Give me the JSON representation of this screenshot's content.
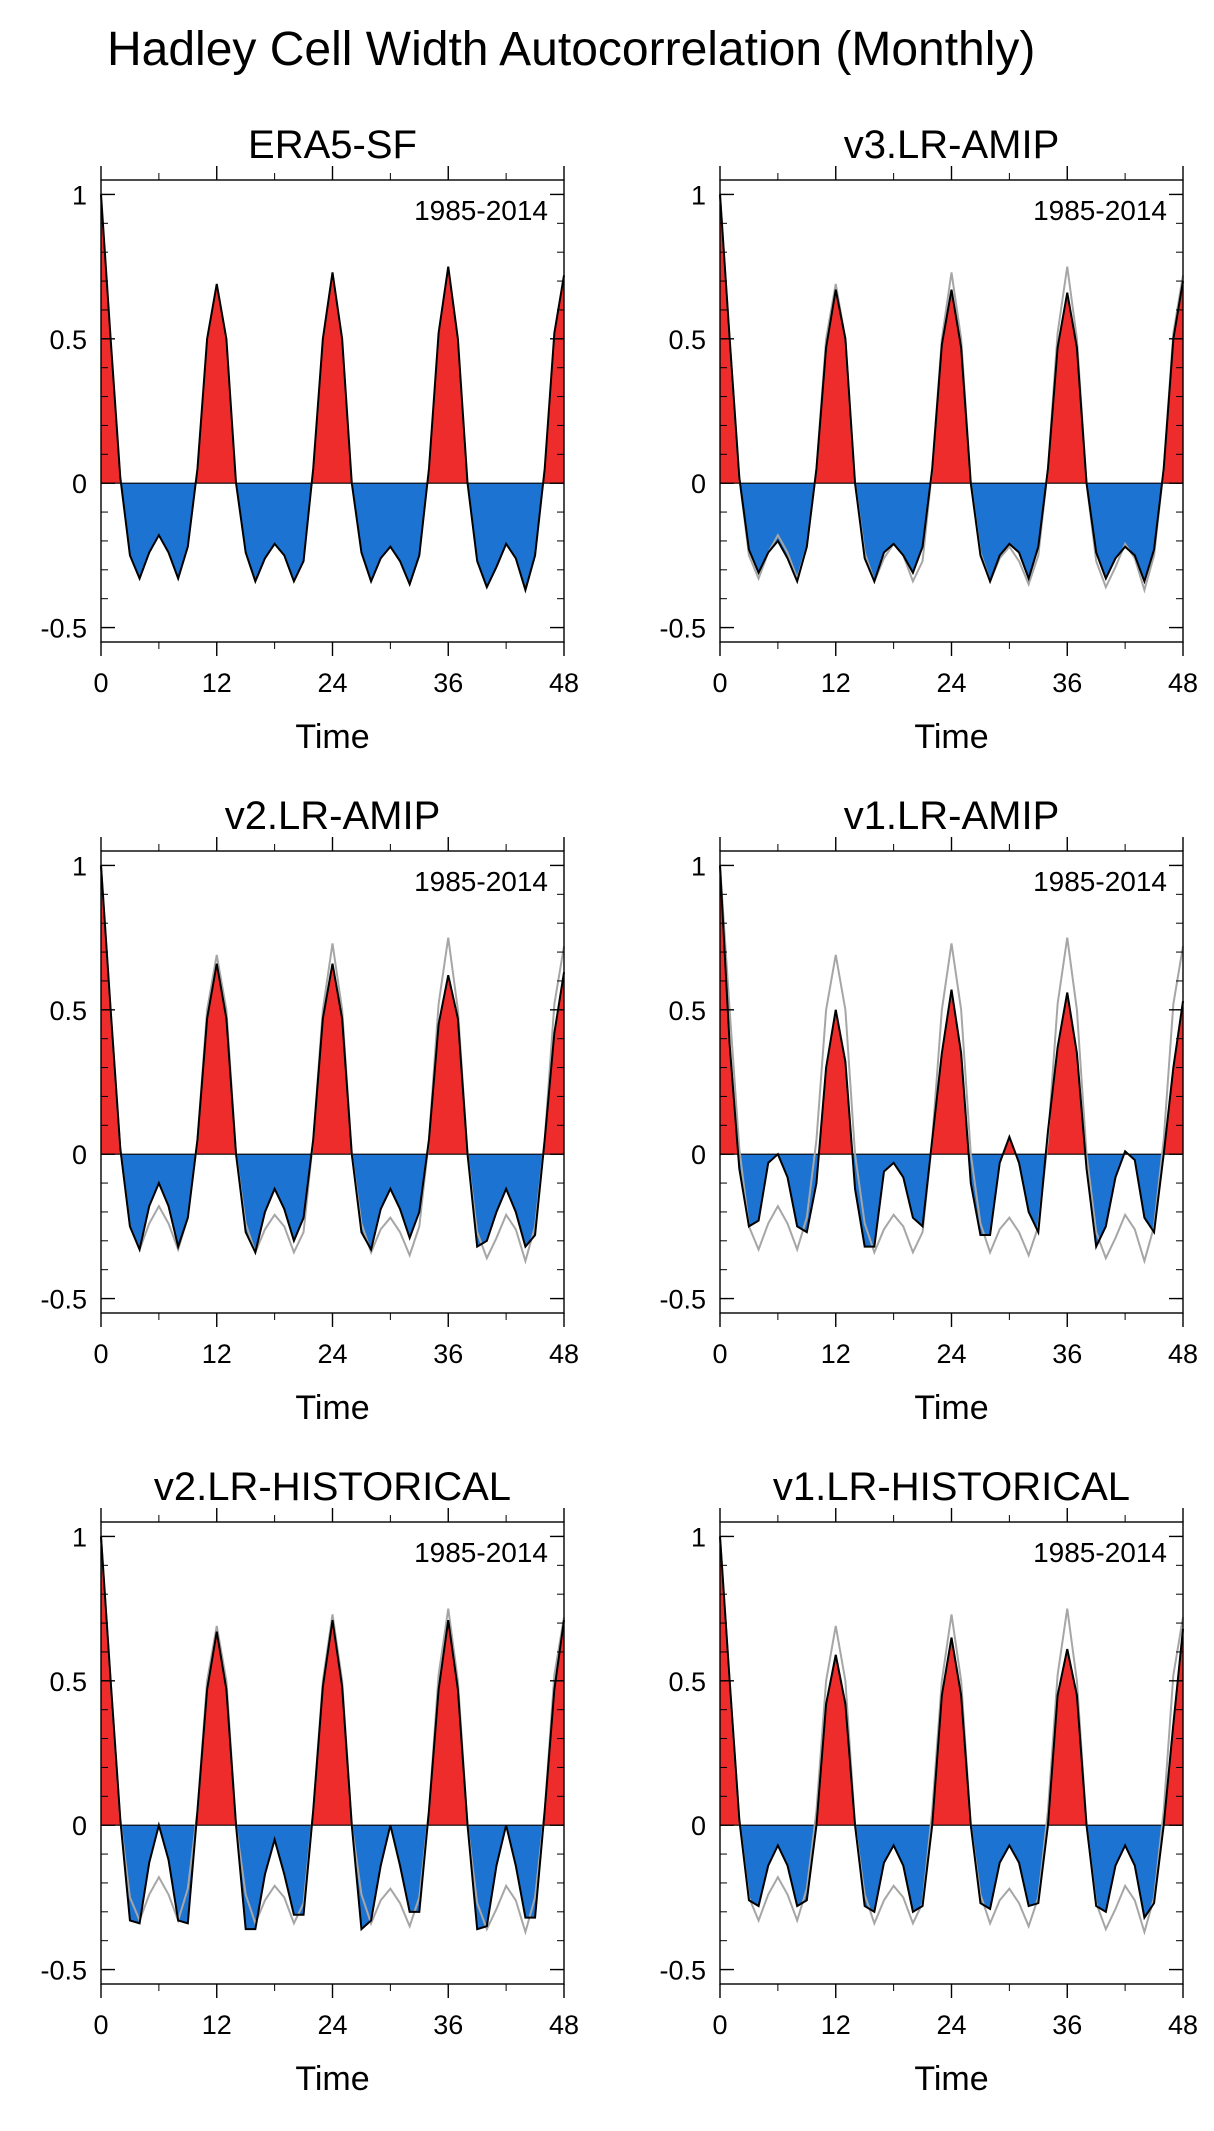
{
  "figure": {
    "title": "Hadley Cell Width Autocorrelation (Monthly)"
  },
  "shared": {
    "xlabel": "Time",
    "period": "1985-2014",
    "xticks": [
      0,
      12,
      24,
      36,
      48
    ],
    "yticks": [
      1,
      0.5,
      0,
      -0.5
    ],
    "ytick_labels": [
      "1",
      "0.5",
      "0",
      "-0.5"
    ],
    "xlim": [
      0,
      48
    ],
    "ylim": [
      -0.55,
      1.05
    ],
    "colors": {
      "positive": "#ee2c2c",
      "negative": "#1c73d2",
      "model_line": "#000000",
      "reference_line": "#a6a6a6"
    }
  },
  "chart_data": [
    {
      "type": "area",
      "title": "ERA5-SF",
      "xlabel": "Time",
      "ylabel": "",
      "annotation": "1985-2014",
      "x": [
        0,
        1,
        2,
        3,
        4,
        5,
        6,
        7,
        8,
        9,
        10,
        11,
        12,
        13,
        14,
        15,
        16,
        17,
        18,
        19,
        20,
        21,
        22,
        23,
        24,
        25,
        26,
        27,
        28,
        29,
        30,
        31,
        32,
        33,
        34,
        35,
        36,
        37,
        38,
        39,
        40,
        41,
        42,
        43,
        44,
        45,
        46,
        47,
        48
      ],
      "ylim": [
        -0.55,
        1.05
      ],
      "series": [
        {
          "name": "ERA5-SF",
          "values": [
            1.0,
            0.5,
            0.02,
            -0.25,
            -0.33,
            -0.24,
            -0.18,
            -0.24,
            -0.33,
            -0.22,
            0.05,
            0.5,
            0.69,
            0.5,
            0.0,
            -0.24,
            -0.34,
            -0.26,
            -0.21,
            -0.25,
            -0.34,
            -0.27,
            0.05,
            0.5,
            0.73,
            0.5,
            0.0,
            -0.24,
            -0.34,
            -0.26,
            -0.22,
            -0.27,
            -0.35,
            -0.25,
            0.05,
            0.52,
            0.75,
            0.5,
            0.0,
            -0.27,
            -0.36,
            -0.29,
            -0.21,
            -0.26,
            -0.37,
            -0.25,
            0.05,
            0.52,
            0.72
          ]
        }
      ]
    },
    {
      "type": "area",
      "title": "v3.LR-AMIP",
      "xlabel": "Time",
      "ylabel": "",
      "annotation": "1985-2014",
      "x": [
        0,
        1,
        2,
        3,
        4,
        5,
        6,
        7,
        8,
        9,
        10,
        11,
        12,
        13,
        14,
        15,
        16,
        17,
        18,
        19,
        20,
        21,
        22,
        23,
        24,
        25,
        26,
        27,
        28,
        29,
        30,
        31,
        32,
        33,
        34,
        35,
        36,
        37,
        38,
        39,
        40,
        41,
        42,
        43,
        44,
        45,
        46,
        47,
        48
      ],
      "ylim": [
        -0.55,
        1.05
      ],
      "series": [
        {
          "name": "v3.LR-AMIP",
          "values": [
            1.0,
            0.5,
            0.02,
            -0.23,
            -0.31,
            -0.24,
            -0.2,
            -0.26,
            -0.34,
            -0.22,
            0.05,
            0.47,
            0.67,
            0.5,
            0.0,
            -0.26,
            -0.34,
            -0.24,
            -0.21,
            -0.25,
            -0.31,
            -0.22,
            0.05,
            0.48,
            0.67,
            0.47,
            0.0,
            -0.25,
            -0.34,
            -0.25,
            -0.21,
            -0.24,
            -0.33,
            -0.22,
            0.05,
            0.47,
            0.66,
            0.47,
            0.0,
            -0.24,
            -0.33,
            -0.26,
            -0.22,
            -0.25,
            -0.34,
            -0.23,
            0.05,
            0.5,
            0.7
          ]
        },
        {
          "name": "ERA5-SF",
          "values": [
            1.0,
            0.5,
            0.02,
            -0.25,
            -0.33,
            -0.24,
            -0.18,
            -0.24,
            -0.33,
            -0.22,
            0.05,
            0.5,
            0.69,
            0.5,
            0.0,
            -0.24,
            -0.34,
            -0.26,
            -0.21,
            -0.25,
            -0.34,
            -0.27,
            0.05,
            0.5,
            0.73,
            0.5,
            0.0,
            -0.24,
            -0.34,
            -0.26,
            -0.22,
            -0.27,
            -0.35,
            -0.25,
            0.05,
            0.52,
            0.75,
            0.5,
            0.0,
            -0.27,
            -0.36,
            -0.29,
            -0.21,
            -0.26,
            -0.37,
            -0.25,
            0.05,
            0.52,
            0.72
          ]
        }
      ]
    },
    {
      "type": "area",
      "title": "v2.LR-AMIP",
      "xlabel": "Time",
      "ylabel": "",
      "annotation": "1985-2014",
      "x": [
        0,
        1,
        2,
        3,
        4,
        5,
        6,
        7,
        8,
        9,
        10,
        11,
        12,
        13,
        14,
        15,
        16,
        17,
        18,
        19,
        20,
        21,
        22,
        23,
        24,
        25,
        26,
        27,
        28,
        29,
        30,
        31,
        32,
        33,
        34,
        35,
        36,
        37,
        38,
        39,
        40,
        41,
        42,
        43,
        44,
        45,
        46,
        47,
        48
      ],
      "ylim": [
        -0.55,
        1.05
      ],
      "series": [
        {
          "name": "v2.LR-AMIP",
          "values": [
            1.0,
            0.5,
            0.02,
            -0.25,
            -0.33,
            -0.18,
            -0.1,
            -0.18,
            -0.32,
            -0.22,
            0.05,
            0.47,
            0.66,
            0.47,
            0.0,
            -0.27,
            -0.34,
            -0.2,
            -0.12,
            -0.19,
            -0.3,
            -0.22,
            0.05,
            0.47,
            0.66,
            0.47,
            0.0,
            -0.27,
            -0.33,
            -0.19,
            -0.12,
            -0.19,
            -0.29,
            -0.2,
            0.05,
            0.45,
            0.62,
            0.47,
            0.0,
            -0.32,
            -0.3,
            -0.2,
            -0.12,
            -0.2,
            -0.32,
            -0.28,
            0.05,
            0.42,
            0.63
          ]
        },
        {
          "name": "ERA5-SF",
          "values": [
            1.0,
            0.5,
            0.02,
            -0.25,
            -0.33,
            -0.24,
            -0.18,
            -0.24,
            -0.33,
            -0.22,
            0.05,
            0.5,
            0.69,
            0.5,
            0.0,
            -0.24,
            -0.34,
            -0.26,
            -0.21,
            -0.25,
            -0.34,
            -0.27,
            0.05,
            0.5,
            0.73,
            0.5,
            0.0,
            -0.24,
            -0.34,
            -0.26,
            -0.22,
            -0.27,
            -0.35,
            -0.25,
            0.05,
            0.52,
            0.75,
            0.5,
            0.0,
            -0.27,
            -0.36,
            -0.29,
            -0.21,
            -0.26,
            -0.37,
            -0.25,
            0.05,
            0.52,
            0.72
          ]
        }
      ]
    },
    {
      "type": "area",
      "title": "v1.LR-AMIP",
      "xlabel": "Time",
      "ylabel": "",
      "annotation": "1985-2014",
      "x": [
        0,
        1,
        2,
        3,
        4,
        5,
        6,
        7,
        8,
        9,
        10,
        11,
        12,
        13,
        14,
        15,
        16,
        17,
        18,
        19,
        20,
        21,
        22,
        23,
        24,
        25,
        26,
        27,
        28,
        29,
        30,
        31,
        32,
        33,
        34,
        35,
        36,
        37,
        38,
        39,
        40,
        41,
        42,
        43,
        44,
        45,
        46,
        47,
        48
      ],
      "ylim": [
        -0.55,
        1.05
      ],
      "series": [
        {
          "name": "v1.LR-AMIP",
          "values": [
            1.0,
            0.38,
            -0.05,
            -0.25,
            -0.23,
            -0.03,
            0.0,
            -0.08,
            -0.25,
            -0.27,
            -0.1,
            0.3,
            0.5,
            0.32,
            -0.12,
            -0.32,
            -0.32,
            -0.06,
            -0.03,
            -0.08,
            -0.22,
            -0.25,
            0.05,
            0.35,
            0.57,
            0.35,
            -0.1,
            -0.28,
            -0.28,
            -0.03,
            0.06,
            -0.03,
            -0.2,
            -0.27,
            0.08,
            0.37,
            0.56,
            0.35,
            -0.05,
            -0.32,
            -0.25,
            -0.08,
            0.01,
            -0.02,
            -0.22,
            -0.27,
            0.0,
            0.3,
            0.53
          ]
        },
        {
          "name": "ERA5-SF",
          "values": [
            1.0,
            0.5,
            0.02,
            -0.25,
            -0.33,
            -0.24,
            -0.18,
            -0.24,
            -0.33,
            -0.22,
            0.05,
            0.5,
            0.69,
            0.5,
            0.0,
            -0.24,
            -0.34,
            -0.26,
            -0.21,
            -0.25,
            -0.34,
            -0.27,
            0.05,
            0.5,
            0.73,
            0.5,
            0.0,
            -0.24,
            -0.34,
            -0.26,
            -0.22,
            -0.27,
            -0.35,
            -0.25,
            0.05,
            0.52,
            0.75,
            0.5,
            0.0,
            -0.27,
            -0.36,
            -0.29,
            -0.21,
            -0.26,
            -0.37,
            -0.25,
            0.05,
            0.52,
            0.72
          ]
        }
      ]
    },
    {
      "type": "area",
      "title": "v2.LR-HISTORICAL",
      "xlabel": "Time",
      "ylabel": "",
      "annotation": "1985-2014",
      "x": [
        0,
        1,
        2,
        3,
        4,
        5,
        6,
        7,
        8,
        9,
        10,
        11,
        12,
        13,
        14,
        15,
        16,
        17,
        18,
        19,
        20,
        21,
        22,
        23,
        24,
        25,
        26,
        27,
        28,
        29,
        30,
        31,
        32,
        33,
        34,
        35,
        36,
        37,
        38,
        39,
        40,
        41,
        42,
        43,
        44,
        45,
        46,
        47,
        48
      ],
      "ylim": [
        -0.55,
        1.05
      ],
      "series": [
        {
          "name": "v2.LR-HISTORICAL",
          "values": [
            1.0,
            0.5,
            0.02,
            -0.33,
            -0.34,
            -0.13,
            0.0,
            -0.12,
            -0.33,
            -0.34,
            0.05,
            0.47,
            0.67,
            0.47,
            0.0,
            -0.36,
            -0.36,
            -0.17,
            -0.05,
            -0.17,
            -0.31,
            -0.31,
            0.05,
            0.48,
            0.71,
            0.48,
            0.0,
            -0.36,
            -0.33,
            -0.14,
            0.0,
            -0.14,
            -0.3,
            -0.3,
            0.05,
            0.47,
            0.71,
            0.47,
            0.0,
            -0.36,
            -0.35,
            -0.14,
            0.0,
            -0.14,
            -0.32,
            -0.32,
            0.05,
            0.47,
            0.71
          ]
        },
        {
          "name": "ERA5-SF",
          "values": [
            1.0,
            0.5,
            0.02,
            -0.25,
            -0.33,
            -0.24,
            -0.18,
            -0.24,
            -0.33,
            -0.22,
            0.05,
            0.5,
            0.69,
            0.5,
            0.0,
            -0.24,
            -0.34,
            -0.26,
            -0.21,
            -0.25,
            -0.34,
            -0.27,
            0.05,
            0.5,
            0.73,
            0.5,
            0.0,
            -0.24,
            -0.34,
            -0.26,
            -0.22,
            -0.27,
            -0.35,
            -0.25,
            0.05,
            0.52,
            0.75,
            0.5,
            0.0,
            -0.27,
            -0.36,
            -0.29,
            -0.21,
            -0.26,
            -0.37,
            -0.25,
            0.05,
            0.52,
            0.72
          ]
        }
      ]
    },
    {
      "type": "area",
      "title": "v1.LR-HISTORICAL",
      "xlabel": "Time",
      "ylabel": "",
      "annotation": "1985-2014",
      "x": [
        0,
        1,
        2,
        3,
        4,
        5,
        6,
        7,
        8,
        9,
        10,
        11,
        12,
        13,
        14,
        15,
        16,
        17,
        18,
        19,
        20,
        21,
        22,
        23,
        24,
        25,
        26,
        27,
        28,
        29,
        30,
        31,
        32,
        33,
        34,
        35,
        36,
        37,
        38,
        39,
        40,
        41,
        42,
        43,
        44,
        45,
        46,
        47,
        48
      ],
      "ylim": [
        -0.55,
        1.05
      ],
      "series": [
        {
          "name": "v1.LR-HISTORICAL",
          "values": [
            1.0,
            0.5,
            0.02,
            -0.26,
            -0.28,
            -0.14,
            -0.07,
            -0.14,
            -0.28,
            -0.26,
            0.0,
            0.42,
            0.59,
            0.42,
            0.0,
            -0.28,
            -0.3,
            -0.13,
            -0.07,
            -0.14,
            -0.3,
            -0.28,
            0.0,
            0.45,
            0.65,
            0.45,
            0.0,
            -0.27,
            -0.29,
            -0.13,
            -0.07,
            -0.13,
            -0.28,
            -0.27,
            0.0,
            0.45,
            0.61,
            0.45,
            0.0,
            -0.28,
            -0.3,
            -0.14,
            -0.07,
            -0.14,
            -0.32,
            -0.27,
            0.0,
            0.35,
            0.68
          ]
        },
        {
          "name": "ERA5-SF",
          "values": [
            1.0,
            0.5,
            0.02,
            -0.25,
            -0.33,
            -0.24,
            -0.18,
            -0.24,
            -0.33,
            -0.22,
            0.05,
            0.5,
            0.69,
            0.5,
            0.0,
            -0.24,
            -0.34,
            -0.26,
            -0.21,
            -0.25,
            -0.34,
            -0.27,
            0.05,
            0.5,
            0.73,
            0.5,
            0.0,
            -0.24,
            -0.34,
            -0.26,
            -0.22,
            -0.27,
            -0.35,
            -0.25,
            0.05,
            0.52,
            0.75,
            0.5,
            0.0,
            -0.27,
            -0.36,
            -0.29,
            -0.21,
            -0.26,
            -0.37,
            -0.25,
            0.05,
            0.52,
            0.72
          ]
        }
      ]
    }
  ]
}
